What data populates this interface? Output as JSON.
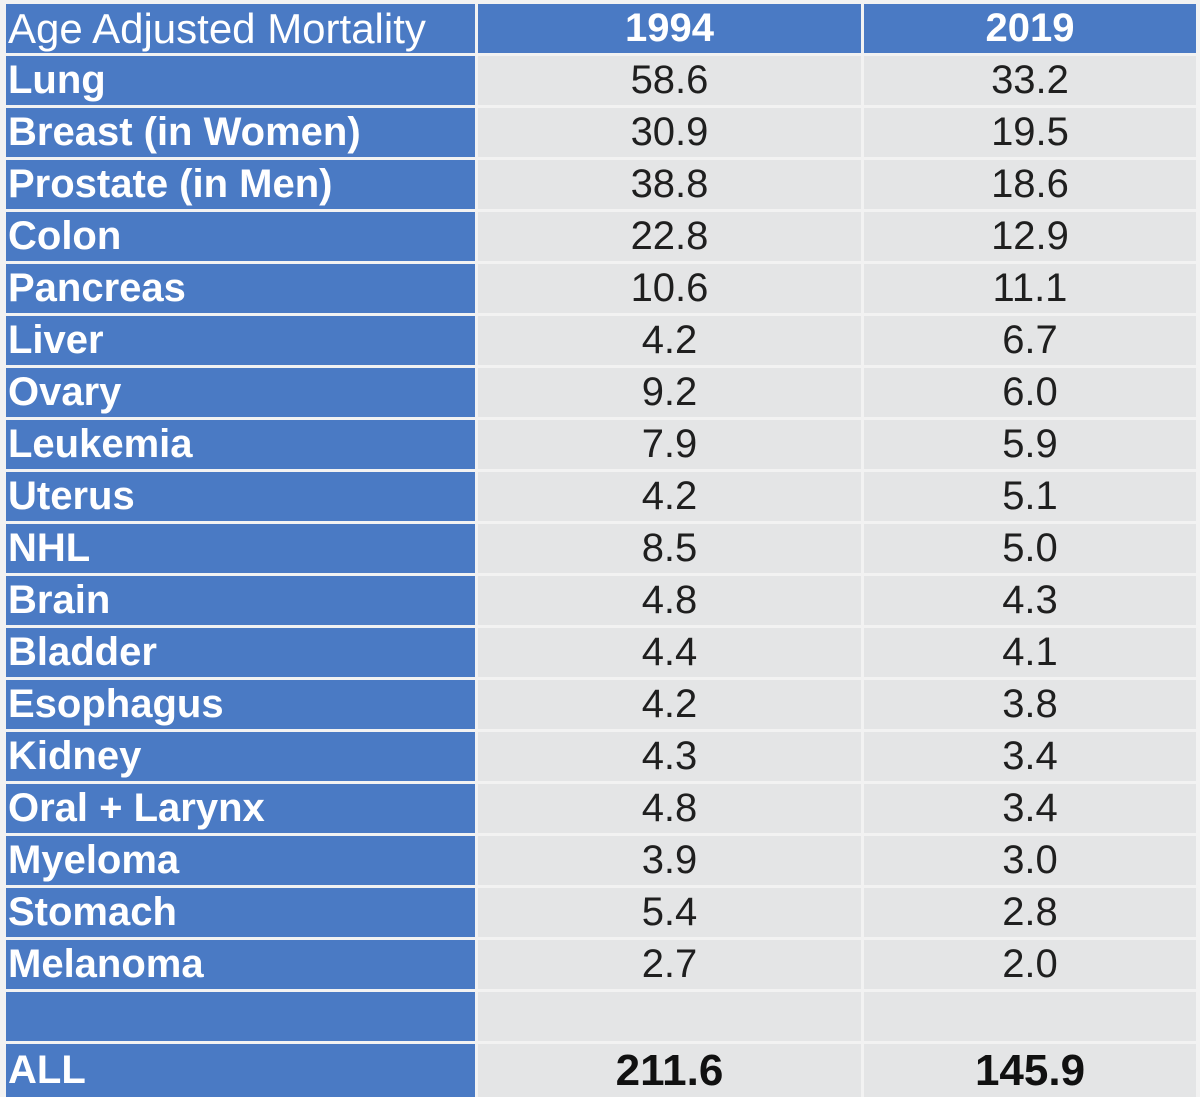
{
  "header": {
    "label": "Age Adjusted Mortality",
    "col1": "1994",
    "col2": "2019"
  },
  "rows": [
    {
      "site": "Lung",
      "y1994": "58.6",
      "y2019": "33.2"
    },
    {
      "site": "Breast (in Women)",
      "y1994": "30.9",
      "y2019": "19.5"
    },
    {
      "site": "Prostate (in Men)",
      "y1994": "38.8",
      "y2019": "18.6"
    },
    {
      "site": "Colon",
      "y1994": "22.8",
      "y2019": "12.9"
    },
    {
      "site": "Pancreas",
      "y1994": "10.6",
      "y2019": "11.1"
    },
    {
      "site": "Liver",
      "y1994": "4.2",
      "y2019": "6.7"
    },
    {
      "site": "Ovary",
      "y1994": "9.2",
      "y2019": "6.0"
    },
    {
      "site": "Leukemia",
      "y1994": "7.9",
      "y2019": "5.9"
    },
    {
      "site": "Uterus",
      "y1994": "4.2",
      "y2019": "5.1"
    },
    {
      "site": "NHL",
      "y1994": "8.5",
      "y2019": "5.0"
    },
    {
      "site": "Brain",
      "y1994": "4.8",
      "y2019": "4.3"
    },
    {
      "site": "Bladder",
      "y1994": "4.4",
      "y2019": "4.1"
    },
    {
      "site": "Esophagus",
      "y1994": "4.2",
      "y2019": "3.8"
    },
    {
      "site": "Kidney",
      "y1994": "4.3",
      "y2019": "3.4"
    },
    {
      "site": "Oral + Larynx",
      "y1994": "4.8",
      "y2019": "3.4"
    },
    {
      "site": "Myeloma",
      "y1994": "3.9",
      "y2019": "3.0"
    },
    {
      "site": "Stomach",
      "y1994": "5.4",
      "y2019": "2.8"
    },
    {
      "site": "Melanoma",
      "y1994": "2.7",
      "y2019": "2.0"
    },
    {
      "site": "",
      "y1994": "",
      "y2019": ""
    }
  ],
  "total": {
    "site": "ALL",
    "y1994": "211.6",
    "y2019": "145.9"
  },
  "colors": {
    "label_bg": "#4a7ac4",
    "value_bg": "#e4e5e6"
  }
}
